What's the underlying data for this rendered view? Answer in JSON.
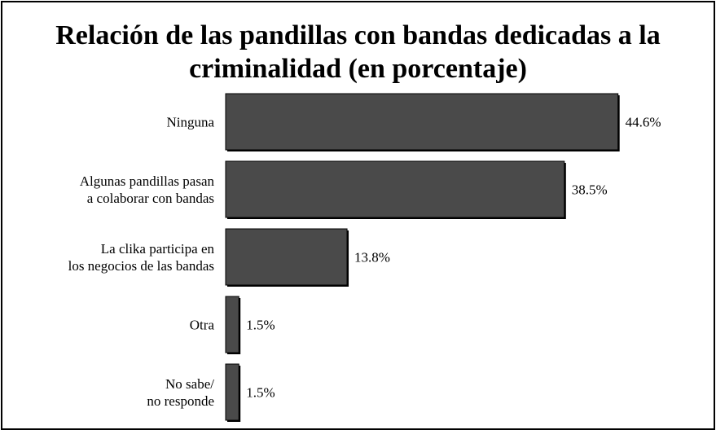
{
  "chart_data": {
    "type": "bar",
    "orientation": "horizontal",
    "title_lines": [
      "Relación de las pandillas con bandas dedicadas a la",
      "criminalidad (en porcentaje)"
    ],
    "categories": [
      [
        "Ninguna"
      ],
      [
        "Algunas pandillas pasan",
        "a colaborar con bandas"
      ],
      [
        "La clika participa en",
        "los negocios de las bandas"
      ],
      [
        "Otra"
      ],
      [
        "No sabe/",
        "no responde"
      ]
    ],
    "values": [
      44.6,
      38.5,
      13.8,
      1.5,
      1.5
    ],
    "value_labels": [
      "44.6%",
      "38.5%",
      "13.8%",
      "1.5%",
      "1.5%"
    ],
    "xlim": [
      0,
      50
    ],
    "grid": false,
    "legend": "none",
    "colors": {
      "bar_fill": "#4a4a4a",
      "bar_edge": "#000000",
      "bar_shadow": "#000000"
    }
  }
}
